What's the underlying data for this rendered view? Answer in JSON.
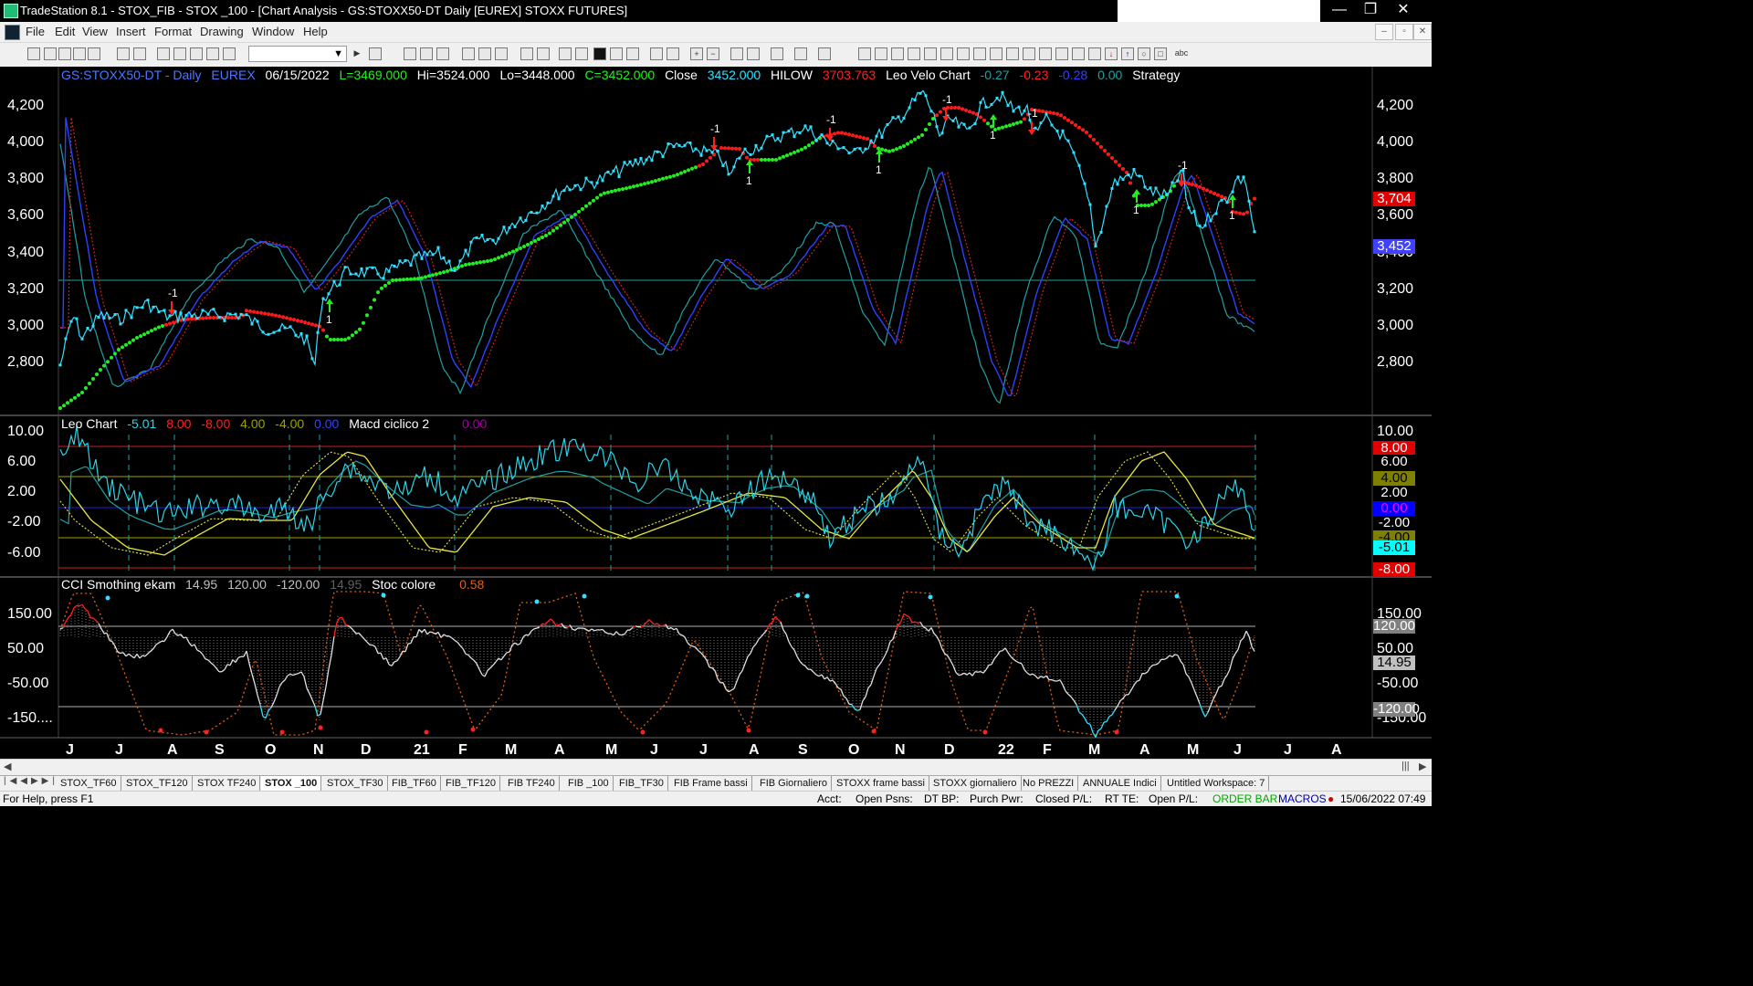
{
  "window": {
    "title": "TradeStation 8.1 - STOX_FIB - STOX _100 - [Chart Analysis - GS:STOXX50-DT  Daily  [EUREX] STOXX FUTURES]",
    "minimize": "—",
    "restore": "❐",
    "close": "✕"
  },
  "menu": {
    "items": [
      "File",
      "Edit",
      "View",
      "Insert",
      "Format",
      "Drawing",
      "Window",
      "Help"
    ],
    "doc_controls": [
      "–",
      "▫",
      "✕"
    ]
  },
  "toolbar": {
    "symbol_select_value": ""
  },
  "price_pane": {
    "header": {
      "symbol": "GS:STOXX50-DT - Daily",
      "exchange": "EUREX",
      "date": "06/15/2022",
      "low_field": "L=3469.000",
      "high_field": "Hi=3524.000",
      "lo_field": "Lo=3448.000",
      "close_field": "C=3452.000",
      "close_label": "Close",
      "close_value": "3452.000",
      "hilow_label": "HILOW",
      "hilow_value": "3703.763",
      "indicator_name": "Leo Velo Chart",
      "v1": "-0.27",
      "v2": "-0.23",
      "v3": "-0.28",
      "v4": "0.00",
      "strategy_label": "Strategy"
    },
    "y_labels": [
      "4,200",
      "4,000",
      "3,800",
      "3,600",
      "3,400",
      "3,200",
      "3,000",
      "2,800"
    ],
    "badge_red": "3,704",
    "badge_blue": "3,452"
  },
  "leo_pane": {
    "header": {
      "name": "Leo Chart",
      "v1": "-5.01",
      "v2": "8.00",
      "v3": "-8.00",
      "v4": "4.00",
      "v5": "-4.00",
      "v6": "0.00",
      "macd_name": "Macd ciclico 2",
      "macd_value": "0.00"
    },
    "y_labels": [
      "10.00",
      "6.00",
      "2.00",
      "-2.00",
      "-6.00"
    ],
    "badges": [
      {
        "text": "8.00",
        "bg": "#e00000",
        "fg": "#ffffff"
      },
      {
        "text": "6.00",
        "bg": "#000000",
        "fg": "#ffffff"
      },
      {
        "text": "4.00",
        "bg": "#808000",
        "fg": "#000000"
      },
      {
        "text": "2.00",
        "bg": "#000000",
        "fg": "#ffffff"
      },
      {
        "text": "0.00",
        "bg": "#0000ff",
        "fg": "#ff00ff"
      },
      {
        "text": "-2.00",
        "bg": "#000000",
        "fg": "#ffffff"
      },
      {
        "text": "-4.00",
        "bg": "#808000",
        "fg": "#000000"
      },
      {
        "text": "-5.01",
        "bg": "#00ffff",
        "fg": "#000000"
      },
      {
        "text": "-8.00",
        "bg": "#e00000",
        "fg": "#ffffff"
      }
    ]
  },
  "cci_pane": {
    "header": {
      "name": "CCI Smothing ekam",
      "v1": "14.95",
      "v2": "120.00",
      "v3": "-120.00",
      "v4": "14.95",
      "stoc_name": "Stoc colore",
      "stoc_value": "0.58"
    },
    "y_labels": [
      "150.00",
      "50.00",
      "-50.00",
      "-150...."
    ],
    "right_labels": [
      "150.00",
      "50.00",
      "-50.00",
      "-150.00"
    ],
    "badges": [
      {
        "text": "120.00",
        "bg": "#808080",
        "fg": "#ffffff"
      },
      {
        "text": "14.95",
        "bg": "#c0c0c0",
        "fg": "#000000"
      },
      {
        "text": "-120.00",
        "bg": "#808080",
        "fg": "#ffffff"
      }
    ]
  },
  "x_axis": {
    "labels": [
      "J",
      "J",
      "A",
      "S",
      "O",
      "N",
      "D",
      "21",
      "F",
      "M",
      "A",
      "M",
      "J",
      "J",
      "A",
      "S",
      "O",
      "N",
      "D",
      "22",
      "F",
      "M",
      "A",
      "M",
      "J",
      "J",
      "A"
    ]
  },
  "tabs": [
    {
      "label": "STOX_TF60",
      "active": false
    },
    {
      "label": "STOX_TF120",
      "active": false
    },
    {
      "label": "STOX TF240",
      "active": false
    },
    {
      "label": "STOX _100",
      "active": true
    },
    {
      "label": "STOX_TF30",
      "active": false
    },
    {
      "label": "FIB_TF60",
      "active": false
    },
    {
      "label": "FIB_TF120",
      "active": false
    },
    {
      "label": "FIB TF240",
      "active": false
    },
    {
      "label": "FIB _100",
      "active": false
    },
    {
      "label": "FIB_TF30",
      "active": false
    },
    {
      "label": "FIB Frame bassi",
      "active": false
    },
    {
      "label": "FIB Giornaliero",
      "active": false
    },
    {
      "label": "STOXX frame bassi",
      "active": false
    },
    {
      "label": "STOXX giornaliero",
      "active": false
    },
    {
      "label": "No PREZZI",
      "active": false
    },
    {
      "label": "ANNUALE Indici",
      "active": false
    },
    {
      "label": "Untitled Workspace: 7",
      "active": false
    }
  ],
  "status": {
    "help": "For Help, press F1",
    "acct": "Acct:",
    "open_psns": "Open Psns:",
    "dt_bp": "DT BP:",
    "purch_pwr": "Purch Pwr:",
    "closed_pl": "Closed P/L:",
    "rt_te": "RT TE:",
    "open_pl": "Open P/L:",
    "order_bar": "ORDER BAR",
    "macros": "MACROS",
    "datetime": "15/06/2022 07:49"
  },
  "colors": {
    "price_cyan": "#33e0ff",
    "hilow_green": "#22ee22",
    "hilow_red": "#ff1a1a",
    "osc_blue": "#3040ff",
    "osc_teal": "#20a0a0",
    "osc_red": "#cc2020",
    "leo_cyan": "#2ad3e8",
    "macd_yellow": "#e6e640",
    "stoc_orange": "#e06010",
    "cci_white": "#e0e0e0"
  }
}
